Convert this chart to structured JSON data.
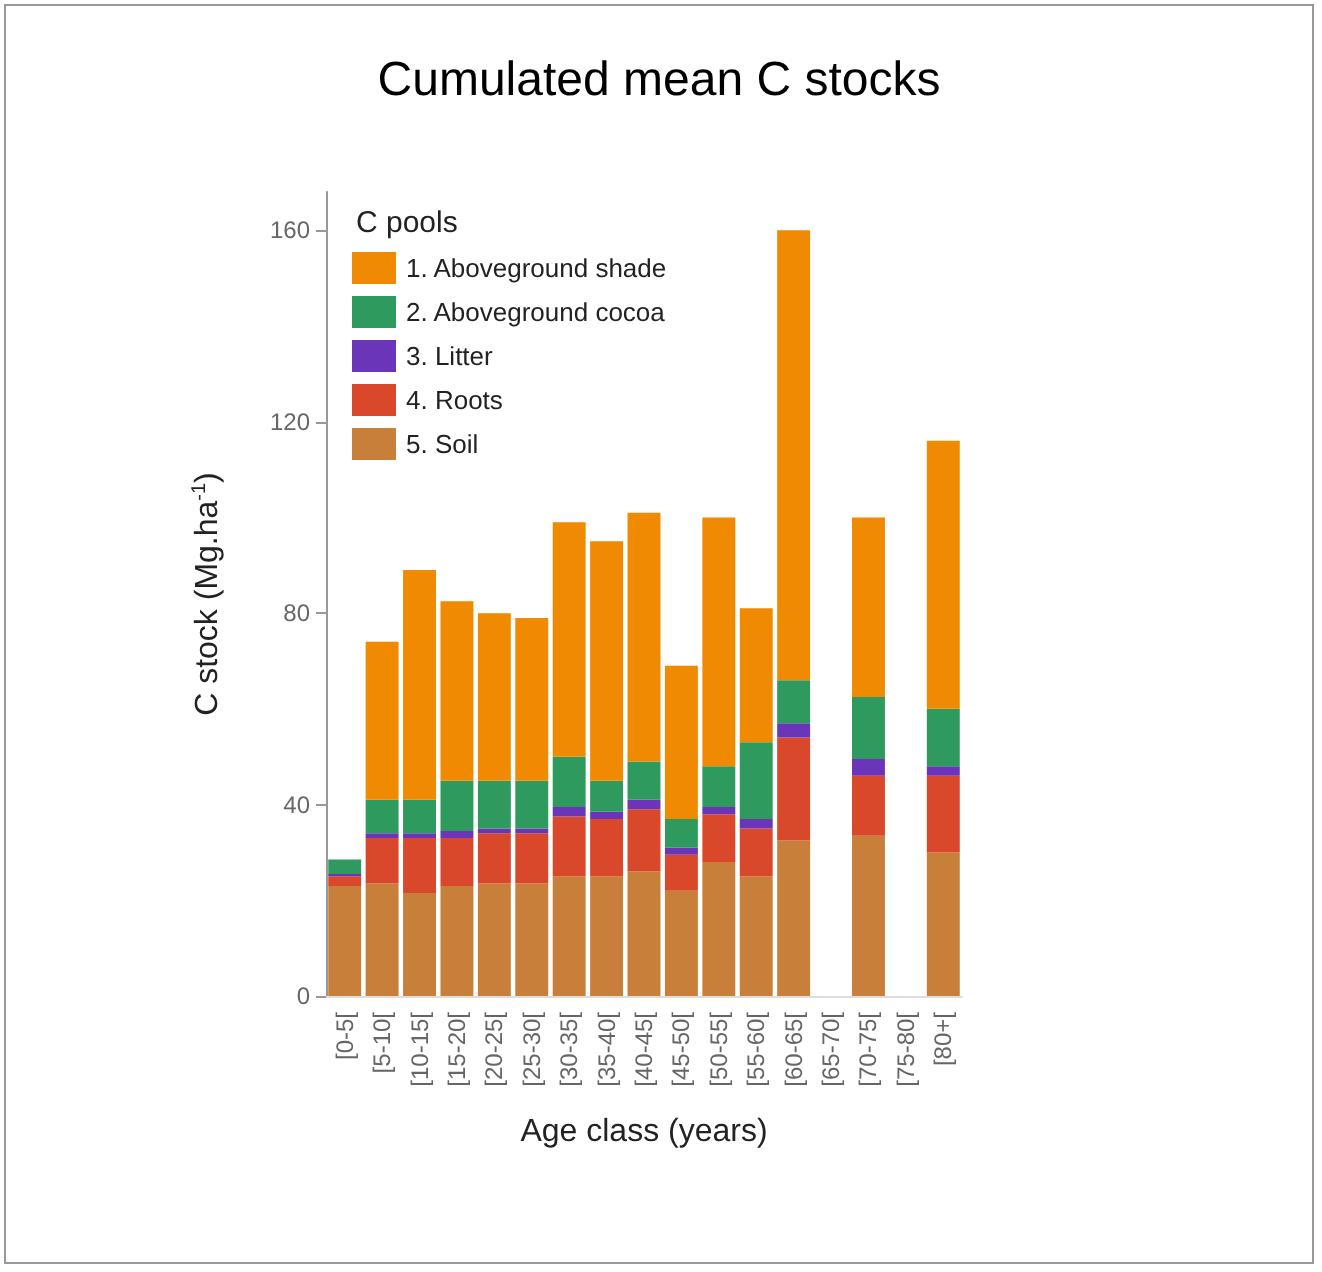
{
  "chart_data": {
    "type": "bar",
    "title": "Cumulated mean C stocks",
    "xlabel": "Age class (years)",
    "ylabel": "C stock (Mg.ha$^{-1}$)",
    "legend_title": "C pools",
    "categories": [
      "[0-5[",
      "[5-10[",
      "[10-15[",
      "[15-20[",
      "[20-25[",
      "[25-30[",
      "[30-35[",
      "[35-40[",
      "[40-45[",
      "[45-50[",
      "[50-55[",
      "[55-60[",
      "[60-65[",
      "[65-70[",
      "[70-75[",
      "[75-80[",
      "[80+["
    ],
    "stacked": true,
    "ylim": [
      0,
      168
    ],
    "yticks": [
      0,
      40,
      80,
      120,
      160
    ],
    "grid": false,
    "legend": "top left",
    "series": [
      {
        "name": "5. Soil",
        "color": "#c87f3a",
        "values": [
          23,
          23.5,
          21.5,
          23,
          23.5,
          23.5,
          25,
          25,
          26,
          22,
          28,
          25,
          32.5,
          null,
          33.5,
          null,
          30
        ]
      },
      {
        "name": "4. Roots",
        "color": "#d9482b",
        "values": [
          2,
          9.5,
          11.5,
          10,
          10.5,
          10.5,
          12.5,
          12,
          13,
          7.5,
          10,
          10,
          21.5,
          null,
          12.5,
          null,
          16
        ]
      },
      {
        "name": "3. Litter",
        "color": "#6a35b8",
        "values": [
          0.5,
          1,
          1,
          1.5,
          1,
          1,
          2,
          1.5,
          2,
          1.5,
          1.5,
          2,
          3,
          null,
          3.5,
          null,
          2
        ]
      },
      {
        "name": "2. Aboveground cocoa",
        "color": "#2e9a5e",
        "values": [
          3,
          7,
          7,
          10.5,
          10,
          10,
          10.5,
          6.5,
          8,
          6,
          8.5,
          16,
          9,
          null,
          13,
          null,
          12
        ]
      },
      {
        "name": "1. Aboveground shade",
        "color": "#f08a00",
        "values": [
          0,
          33,
          48,
          37.5,
          35,
          34,
          49,
          50,
          52,
          32,
          52,
          28,
          94,
          null,
          37.5,
          null,
          56
        ]
      }
    ]
  }
}
